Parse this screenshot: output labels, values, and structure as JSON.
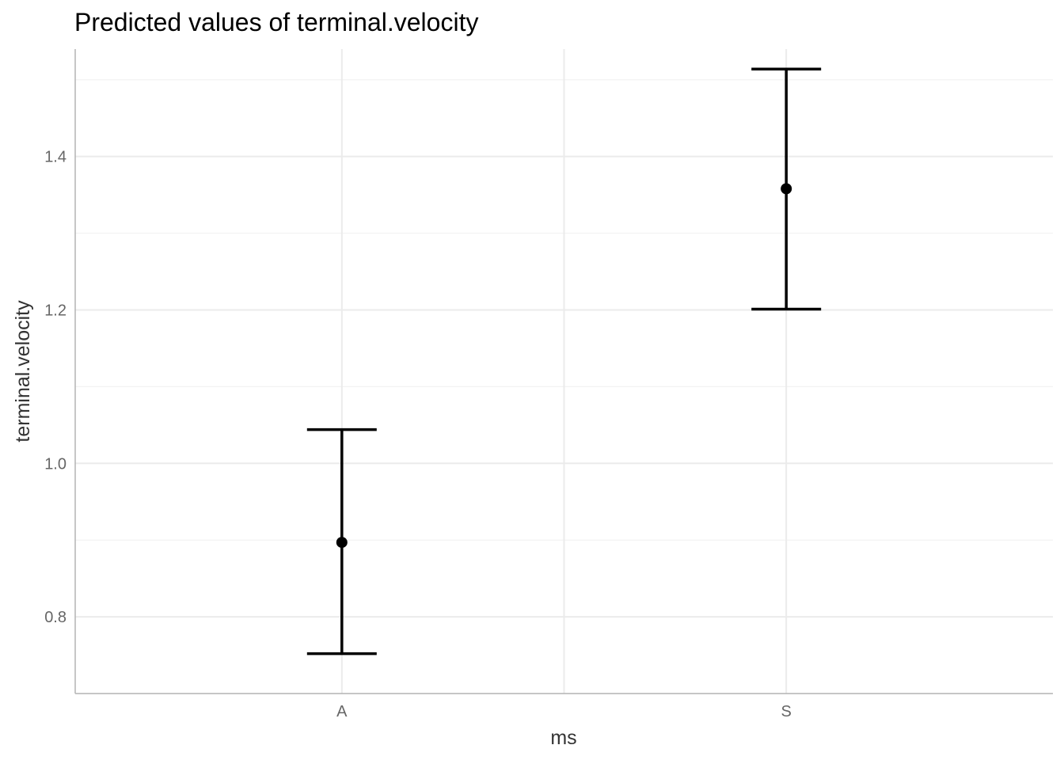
{
  "chart_data": {
    "type": "scatter",
    "title": "Predicted values of terminal.velocity",
    "xlabel": "ms",
    "ylabel": "terminal.velocity",
    "categories": [
      "A",
      "S"
    ],
    "x_extra_grid": [
      1.5
    ],
    "ylim": [
      0.7,
      1.54
    ],
    "yticks": [
      0.8,
      1.0,
      1.2,
      1.4
    ],
    "yticks_minor": [
      0.9,
      1.1,
      1.3,
      1.5
    ],
    "ytick_labels": [
      "0.8",
      "1.0",
      "1.2",
      "1.4"
    ],
    "series": [
      {
        "values": [
          0.897,
          1.358
        ],
        "ci_low": [
          0.752,
          1.201
        ],
        "ci_high": [
          1.044,
          1.514
        ]
      }
    ],
    "grid": true,
    "legend": "none",
    "colors": {
      "point": "#000000",
      "grid": "#ebebeb",
      "axis": "#b3b3b3"
    }
  }
}
